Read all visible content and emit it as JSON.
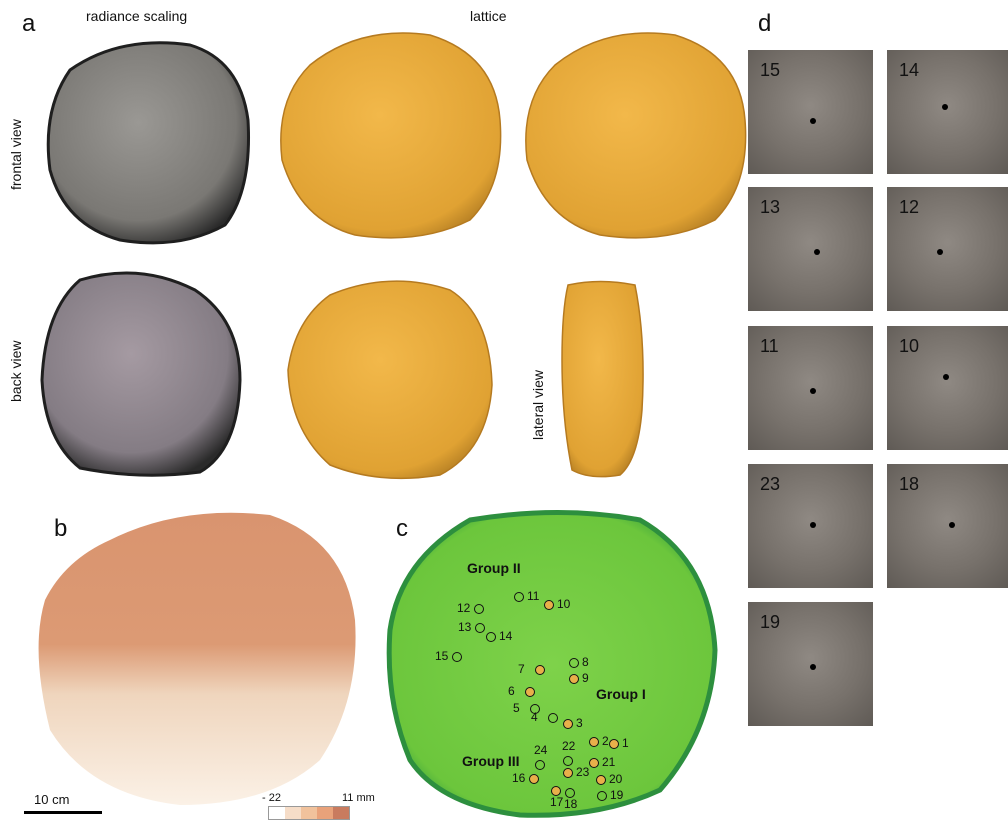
{
  "panels": {
    "a": {
      "letter": "a",
      "col_headers": [
        "radiance scaling",
        "lattice"
      ],
      "row_labels": [
        "frontal view",
        "back view"
      ],
      "side_label": "lateral view"
    },
    "b": {
      "letter": "b",
      "scale_bar": "10 cm",
      "legend_min": "- 22",
      "legend_max": "11 mm",
      "legend_colors": [
        "#ffffff",
        "#f6ddc8",
        "#f1c29c",
        "#e9a27a",
        "#c97b5f"
      ]
    },
    "c": {
      "letter": "c",
      "groups": [
        "Group I",
        "Group II",
        "Group III"
      ],
      "markers": [
        "1",
        "2",
        "3",
        "4",
        "5",
        "6",
        "7",
        "8",
        "9",
        "10",
        "11",
        "12",
        "13",
        "14",
        "15",
        "16",
        "17",
        "18",
        "19",
        "20",
        "21",
        "22",
        "23",
        "24"
      ]
    },
    "d": {
      "letter": "d",
      "thumbs": [
        "15",
        "14",
        "13",
        "12",
        "11",
        "10",
        "23",
        "18",
        "19"
      ]
    }
  }
}
